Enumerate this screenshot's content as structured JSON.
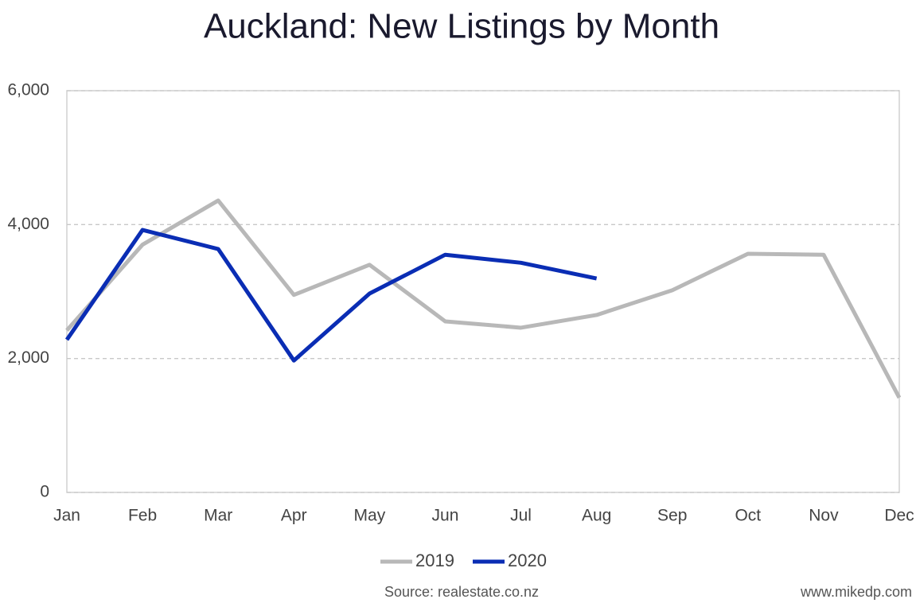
{
  "chart_data": {
    "type": "line",
    "title": "Auckland: New Listings by Month",
    "categories": [
      "Jan",
      "Feb",
      "Mar",
      "Apr",
      "May",
      "Jun",
      "Jul",
      "Aug",
      "Sep",
      "Oct",
      "Nov",
      "Dec"
    ],
    "series": [
      {
        "name": "2019",
        "color": "#b8b8b8",
        "values": [
          2420,
          3700,
          4360,
          2950,
          3400,
          2555,
          2460,
          2650,
          3020,
          3565,
          3550,
          1415
        ]
      },
      {
        "name": "2020",
        "color": "#0a2db4",
        "values": [
          2280,
          3920,
          3635,
          1970,
          2970,
          3550,
          3430,
          3195,
          null,
          null,
          null,
          null
        ]
      }
    ],
    "ylim": [
      0,
      6000
    ],
    "yticks": [
      0,
      {
        "value": 2000,
        "label": "2,000"
      },
      {
        "value": 4000,
        "label": "4,000"
      },
      {
        "value": 6000,
        "label": "6,000"
      }
    ],
    "grid": true,
    "legend": "bottom",
    "source": "Source: realestate.co.nz",
    "credit": "www.mikedp.com"
  }
}
